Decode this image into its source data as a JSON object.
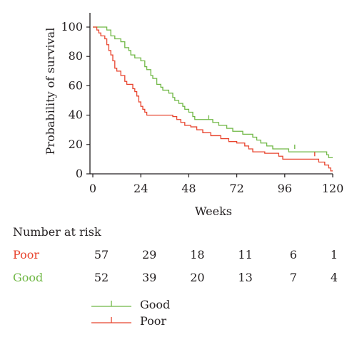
{
  "chart_data": {
    "type": "line",
    "title": "",
    "xlabel": "Weeks",
    "ylabel": "Probability of survival",
    "xlim": [
      0,
      120
    ],
    "ylim": [
      0,
      100
    ],
    "xticks": [
      0,
      24,
      48,
      72,
      96,
      120
    ],
    "yticks": [
      0,
      20,
      40,
      60,
      80,
      100
    ],
    "grid": false,
    "legend_position": "bottom-left",
    "series": [
      {
        "name": "Good",
        "color": "#6fb744",
        "steps": [
          [
            0,
            100
          ],
          [
            6,
            100
          ],
          [
            7,
            98
          ],
          [
            9,
            94
          ],
          [
            11,
            92
          ],
          [
            14,
            90
          ],
          [
            16,
            86
          ],
          [
            18,
            84
          ],
          [
            19,
            81
          ],
          [
            21,
            79
          ],
          [
            24,
            77
          ],
          [
            26,
            73
          ],
          [
            27,
            71
          ],
          [
            29,
            67
          ],
          [
            30,
            65
          ],
          [
            32,
            61
          ],
          [
            34,
            59
          ],
          [
            35,
            57
          ],
          [
            38,
            55
          ],
          [
            40,
            52
          ],
          [
            41,
            50
          ],
          [
            43,
            48
          ],
          [
            45,
            46
          ],
          [
            46,
            44
          ],
          [
            48,
            42
          ],
          [
            50,
            39
          ],
          [
            51,
            37
          ],
          [
            57,
            37
          ],
          [
            60,
            35
          ],
          [
            63,
            33
          ],
          [
            67,
            31
          ],
          [
            70,
            29
          ],
          [
            75,
            27
          ],
          [
            80,
            25
          ],
          [
            82,
            23
          ],
          [
            84,
            21
          ],
          [
            87,
            19
          ],
          [
            90,
            17
          ],
          [
            97,
            17
          ],
          [
            98,
            15
          ],
          [
            115,
            15
          ],
          [
            117,
            13
          ],
          [
            118,
            11
          ],
          [
            120,
            11
          ]
        ],
        "censor_marks": [
          [
            58,
            37
          ],
          [
            101,
            17
          ]
        ]
      },
      {
        "name": "Poor",
        "color": "#e8432d",
        "steps": [
          [
            0,
            100
          ],
          [
            2,
            98
          ],
          [
            3,
            96
          ],
          [
            4,
            94
          ],
          [
            6,
            92
          ],
          [
            7,
            88
          ],
          [
            8,
            84
          ],
          [
            9,
            81
          ],
          [
            10,
            77
          ],
          [
            11,
            72
          ],
          [
            12,
            70
          ],
          [
            14,
            67
          ],
          [
            16,
            63
          ],
          [
            17,
            61
          ],
          [
            20,
            58
          ],
          [
            21,
            56
          ],
          [
            22,
            53
          ],
          [
            23,
            49
          ],
          [
            24,
            46
          ],
          [
            25,
            44
          ],
          [
            26,
            42
          ],
          [
            27,
            40
          ],
          [
            37,
            40
          ],
          [
            40,
            39
          ],
          [
            42,
            37
          ],
          [
            44,
            35
          ],
          [
            46,
            33
          ],
          [
            49,
            32
          ],
          [
            52,
            30
          ],
          [
            55,
            28
          ],
          [
            59,
            26
          ],
          [
            64,
            24
          ],
          [
            68,
            22
          ],
          [
            72,
            21
          ],
          [
            76,
            19
          ],
          [
            78,
            17
          ],
          [
            80,
            15
          ],
          [
            86,
            14
          ],
          [
            93,
            12
          ],
          [
            95,
            10
          ],
          [
            110,
            10
          ],
          [
            113,
            8
          ],
          [
            116,
            6
          ],
          [
            118,
            4
          ],
          [
            119,
            2
          ],
          [
            120,
            2
          ]
        ],
        "censor_marks": [
          [
            111,
            12
          ]
        ]
      }
    ]
  },
  "risk_table": {
    "title": "Number at risk",
    "rows": [
      {
        "label": "Poor",
        "color": "#e8432d",
        "values": [
          57,
          29,
          18,
          11,
          6,
          1
        ]
      },
      {
        "label": "Good",
        "color": "#6fb744",
        "values": [
          52,
          39,
          20,
          13,
          7,
          4
        ]
      }
    ]
  },
  "legend": [
    {
      "label": "Good",
      "color": "#6fb744"
    },
    {
      "label": "Poor",
      "color": "#e8432d"
    }
  ]
}
